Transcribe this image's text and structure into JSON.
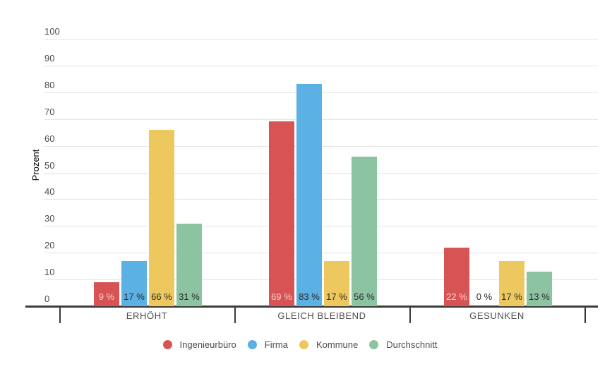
{
  "chart_data": {
    "type": "bar",
    "title": "",
    "xlabel": "",
    "ylabel": "Prozent",
    "ylim": [
      0,
      100
    ],
    "ytick_step": 10,
    "grid": true,
    "legend_position": "bottom",
    "value_suffix": " %",
    "categories": [
      "ERHÖHT",
      "GLEICH BLEIBEND",
      "GESUNKEN"
    ],
    "series": [
      {
        "name": "Ingenieurbüro",
        "color": "#d85454",
        "label_color": "#f3d0ce",
        "values": [
          9,
          69,
          22
        ]
      },
      {
        "name": "Firma",
        "color": "#5bb1e3",
        "label_color": "#2b2b2b",
        "values": [
          17,
          83,
          0
        ]
      },
      {
        "name": "Kommune",
        "color": "#edc85e",
        "label_color": "#2b2b2b",
        "values": [
          66,
          17,
          17
        ]
      },
      {
        "name": "Durchschnitt",
        "color": "#8cc4a2",
        "label_color": "#2b2b2b",
        "values": [
          31,
          56,
          13
        ]
      }
    ],
    "style": {
      "background_color": "#ffffff",
      "grid_color": "#e4e4e4",
      "axis_line_color": "#3b3b3b",
      "axis_text_color": "#4d4d4d",
      "value_label_color": "#2b2b2b"
    }
  }
}
